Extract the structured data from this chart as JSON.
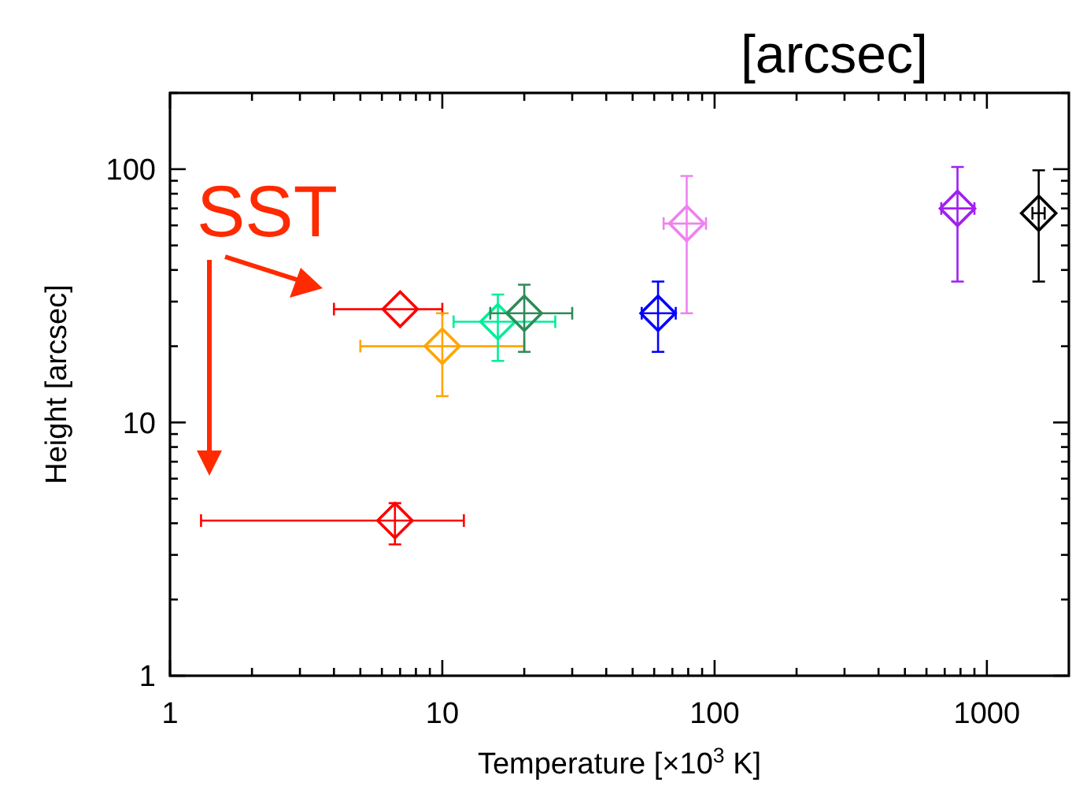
{
  "chart_data": {
    "type": "scatter",
    "title": "[arcsec]",
    "xlabel": "Temperature [×10$^{3}$ K]",
    "ylabel": "Height [arcsec]",
    "log": "xy",
    "marker": "diamond",
    "grid": false,
    "xlim": [
      1,
      2000
    ],
    "ylim": [
      1,
      200
    ],
    "xticks": [
      1,
      {
        "value": 2,
        "label": null
      },
      {
        "value": 3,
        "label": null
      },
      {
        "value": 4,
        "label": null
      },
      {
        "value": 5,
        "label": null
      },
      {
        "value": 6,
        "label": null
      },
      {
        "value": 7,
        "label": null
      },
      {
        "value": 8,
        "label": null
      },
      {
        "value": 9,
        "label": null
      },
      10,
      {
        "value": 20,
        "label": null
      },
      {
        "value": 30,
        "label": null
      },
      {
        "value": 40,
        "label": null
      },
      {
        "value": 50,
        "label": null
      },
      {
        "value": 60,
        "label": null
      },
      {
        "value": 70,
        "label": null
      },
      {
        "value": 80,
        "label": null
      },
      {
        "value": 90,
        "label": null
      },
      100,
      {
        "value": 200,
        "label": null
      },
      {
        "value": 300,
        "label": null
      },
      {
        "value": 400,
        "label": null
      },
      {
        "value": 500,
        "label": null
      },
      {
        "value": 600,
        "label": null
      },
      {
        "value": 700,
        "label": null
      },
      {
        "value": 800,
        "label": null
      },
      {
        "value": 900,
        "label": null
      },
      1000
    ],
    "yticks": [
      1,
      {
        "value": 2,
        "label": null
      },
      {
        "value": 3,
        "label": null
      },
      {
        "value": 4,
        "label": null
      },
      {
        "value": 5,
        "label": null
      },
      {
        "value": 6,
        "label": null
      },
      {
        "value": 7,
        "label": null
      },
      {
        "value": 8,
        "label": null
      },
      {
        "value": 9,
        "label": null
      },
      10,
      {
        "value": 20,
        "label": null
      },
      {
        "value": 30,
        "label": null
      },
      {
        "value": 40,
        "label": null
      },
      {
        "value": 50,
        "label": null
      },
      {
        "value": 60,
        "label": null
      },
      {
        "value": 70,
        "label": null
      },
      {
        "value": 80,
        "label": null
      },
      {
        "value": 90,
        "label": null
      },
      100,
      {
        "value": 200,
        "label": null
      }
    ],
    "annotations": [
      "SST"
    ],
    "series": [
      {
        "color": "#ff0000",
        "x": [
          7
        ],
        "values": [
          28
        ],
        "xerrors": [
          [
            4,
            10
          ]
        ]
      },
      {
        "color": "#ff0000",
        "x": [
          6.7
        ],
        "values": [
          4.1
        ],
        "xerrors": [
          [
            1.3,
            12
          ]
        ],
        "errors": [
          [
            3.3,
            4.8
          ]
        ]
      },
      {
        "color": "#ffa500",
        "x": [
          10
        ],
        "values": [
          20
        ],
        "xerrors": [
          [
            5,
            20
          ]
        ],
        "errors": [
          [
            12.7,
            27
          ]
        ]
      },
      {
        "color": "#00ee99",
        "x": [
          16
        ],
        "values": [
          25
        ],
        "xerrors": [
          [
            11,
            26
          ]
        ],
        "errors": [
          [
            17.5,
            32
          ]
        ]
      },
      {
        "color": "#2e8b57",
        "x": [
          20
        ],
        "values": [
          27
        ],
        "xerrors": [
          [
            15,
            30
          ]
        ],
        "errors": [
          [
            19,
            35
          ]
        ]
      },
      {
        "color": "#0000ff",
        "x": [
          62
        ],
        "values": [
          27
        ],
        "xerrors": [
          [
            54,
            72
          ]
        ],
        "errors": [
          [
            19,
            36
          ]
        ]
      },
      {
        "color": "#ee82ee",
        "x": [
          79
        ],
        "values": [
          61
        ],
        "xerrors": [
          [
            65,
            93
          ]
        ],
        "errors": [
          [
            27,
            94
          ]
        ]
      },
      {
        "color": "#a020f0",
        "x": [
          780
        ],
        "values": [
          70
        ],
        "xerrors": [
          [
            680,
            900
          ]
        ],
        "errors": [
          [
            36,
            102
          ]
        ]
      },
      {
        "color": "#000000",
        "x": [
          1550
        ],
        "values": [
          67
        ],
        "xerrors": [
          [
            1470,
            1630
          ]
        ],
        "errors": [
          [
            36,
            99
          ]
        ]
      }
    ]
  }
}
